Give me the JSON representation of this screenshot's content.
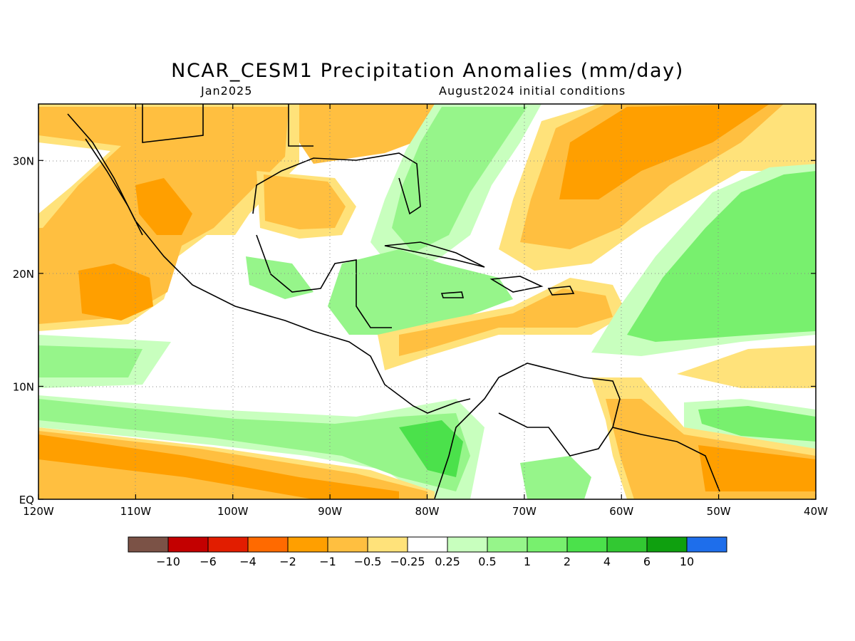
{
  "title": "NCAR_CESM1 Precipitation Anomalies (mm/day)",
  "valid_month": "Jan2025",
  "initial_conditions": "August2024 initial conditions",
  "map": {
    "lon_range": [
      -120,
      -40
    ],
    "lat_range": [
      0,
      35
    ],
    "lon_ticks": [
      {
        "value": -120,
        "label": "120W"
      },
      {
        "value": -110,
        "label": "110W"
      },
      {
        "value": -100,
        "label": "100W"
      },
      {
        "value": -90,
        "label": "90W"
      },
      {
        "value": -80,
        "label": "80W"
      },
      {
        "value": -70,
        "label": "70W"
      },
      {
        "value": -60,
        "label": "60W"
      },
      {
        "value": -50,
        "label": "50W"
      },
      {
        "value": -40,
        "label": "40W"
      }
    ],
    "lat_ticks": [
      {
        "value": 0,
        "label": "EQ"
      },
      {
        "value": 10,
        "label": "10N"
      },
      {
        "value": 20,
        "label": "20N"
      },
      {
        "value": 30,
        "label": "30N"
      }
    ],
    "grid": "dotted"
  },
  "colorbar": {
    "colors": [
      "#7b5246",
      "#c30000",
      "#e21d00",
      "#ff6a00",
      "#ff9f00",
      "#ffbf40",
      "#ffe27a",
      "#ffffff",
      "#c8ffbe",
      "#96f58a",
      "#78f06e",
      "#4be14b",
      "#32c832",
      "#0fa00f",
      "#1e6eeb"
    ],
    "labels": [
      "−10",
      "−6",
      "−4",
      "−2",
      "−1",
      "−0.5",
      "−0.25",
      "0.25",
      "0.5",
      "1",
      "2",
      "4",
      "6",
      "10"
    ]
  }
}
